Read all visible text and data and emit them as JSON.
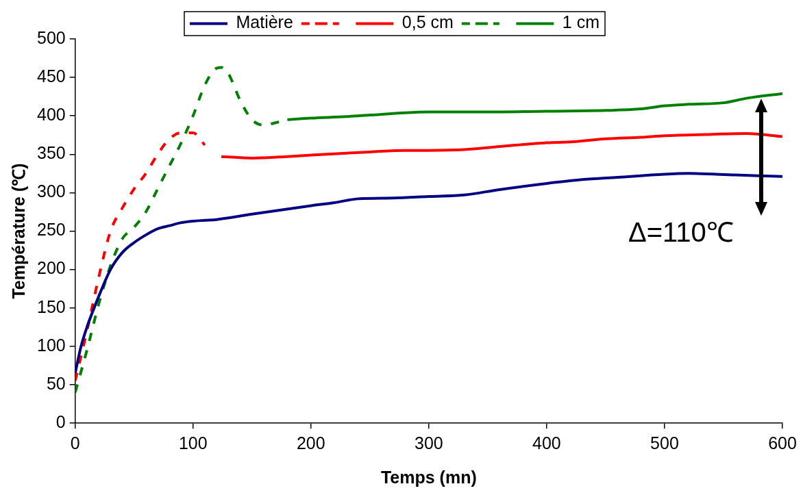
{
  "chart_data": {
    "type": "line",
    "xlabel": "Temps (mn)",
    "ylabel": "Température (℃)",
    "xlim": [
      0,
      600
    ],
    "xticks": [
      0,
      100,
      200,
      300,
      400,
      500,
      600
    ],
    "ylim": [
      0,
      500
    ],
    "yticks": [
      0,
      50,
      100,
      150,
      200,
      250,
      300,
      350,
      400,
      450,
      500
    ],
    "grid": false,
    "legend": "top",
    "marker": "none",
    "annotations": [
      "Δ=110℃"
    ],
    "series": [
      {
        "name": "Matière",
        "color": "#000080",
        "line_style": "solid",
        "x": [
          0,
          5,
          10,
          20,
          30,
          40,
          50,
          60,
          70,
          80,
          90,
          100,
          110,
          120,
          150,
          200,
          220,
          240,
          270,
          300,
          330,
          360,
          400,
          430,
          460,
          500,
          520,
          560,
          600
        ],
        "values": [
          65,
          100,
          125,
          165,
          200,
          222,
          235,
          245,
          253,
          257,
          261,
          263,
          264,
          265,
          272,
          283,
          287,
          292,
          293,
          295,
          297,
          304,
          312,
          317,
          320,
          324,
          325,
          323,
          321
        ]
      },
      {
        "color": "#ff0000",
        "line_style": "dashed",
        "x": [
          0,
          10,
          20,
          30,
          40,
          50,
          60,
          70,
          80,
          90,
          100,
          110
        ],
        "values": [
          55,
          120,
          190,
          250,
          280,
          305,
          325,
          350,
          370,
          378,
          378,
          362
        ]
      },
      {
        "name": "0,5 cm",
        "color": "#ff0000",
        "line_style": "solid",
        "x": [
          124,
          150,
          180,
          200,
          250,
          280,
          300,
          330,
          360,
          400,
          420,
          450,
          480,
          500,
          540,
          570,
          600
        ],
        "values": [
          347,
          345,
          347,
          349,
          353,
          355,
          355,
          356,
          360,
          365,
          366,
          370,
          372,
          374,
          376,
          377,
          373
        ]
      },
      {
        "color": "#008000",
        "line_style": "dashed",
        "x": [
          0,
          10,
          20,
          30,
          40,
          50,
          60,
          70,
          80,
          90,
          100,
          110,
          120,
          125,
          130,
          140,
          150,
          160,
          170,
          175
        ],
        "values": [
          40,
          95,
          155,
          205,
          240,
          255,
          275,
          305,
          335,
          365,
          400,
          440,
          462,
          463,
          455,
          420,
          395,
          388,
          391,
          393
        ]
      },
      {
        "name": "1 cm",
        "color": "#008000",
        "line_style": "solid",
        "x": [
          180,
          200,
          230,
          250,
          280,
          300,
          350,
          400,
          450,
          480,
          500,
          520,
          550,
          570,
          600
        ],
        "values": [
          395,
          397,
          399,
          401,
          404,
          405,
          405,
          406,
          407,
          409,
          413,
          415,
          417,
          423,
          429
        ]
      }
    ]
  }
}
